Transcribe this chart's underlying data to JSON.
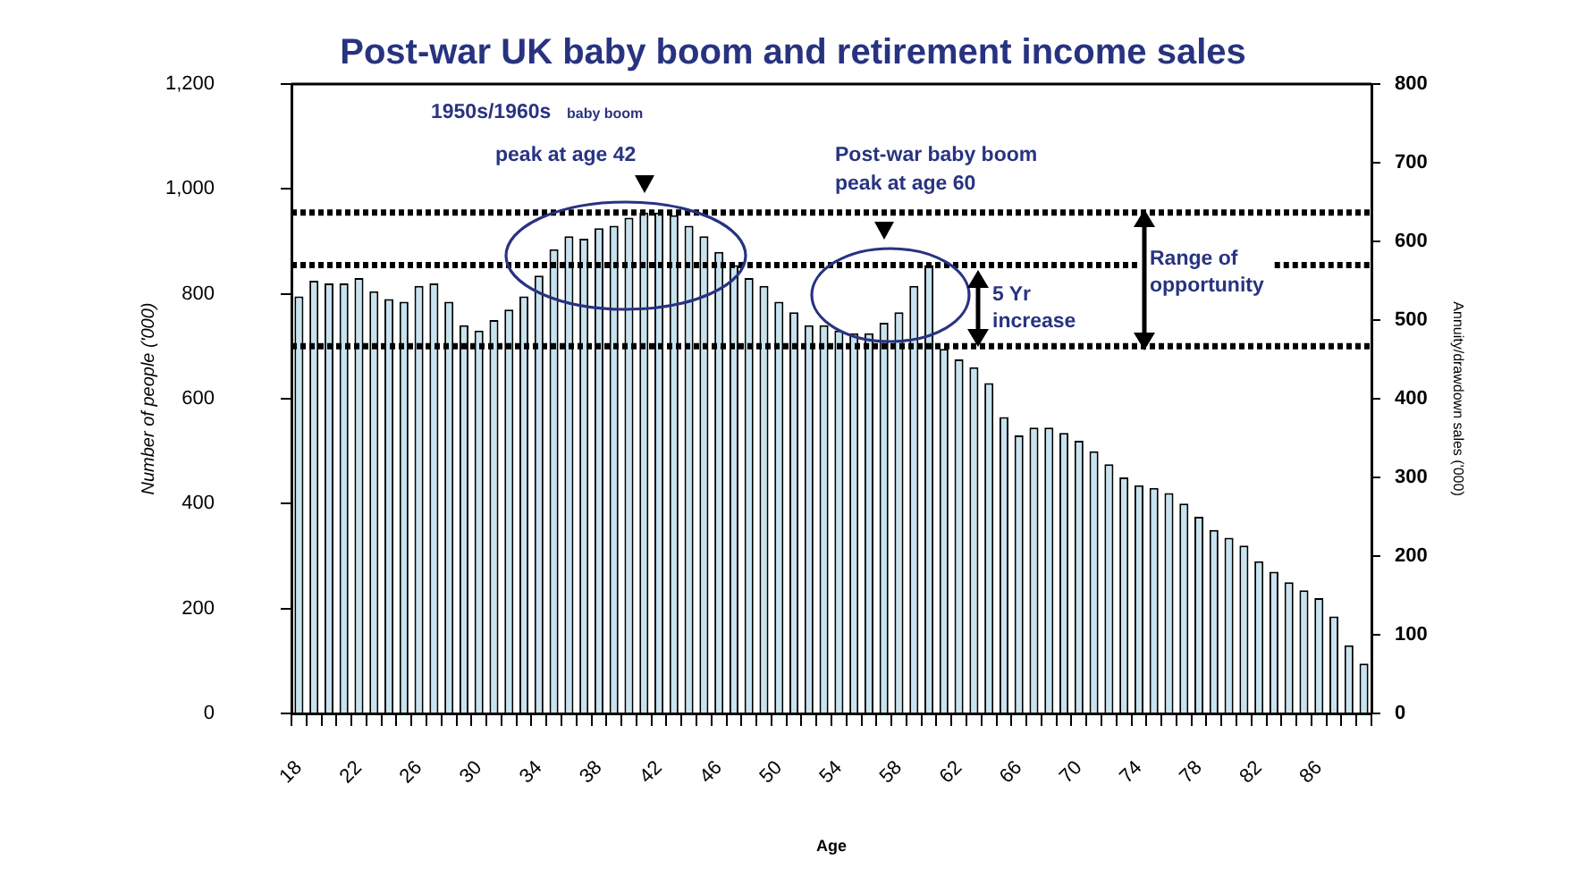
{
  "chart_data": {
    "type": "bar",
    "title": "Post-war UK baby boom and retirement income sales",
    "xlabel": "Age",
    "ylabel": "Number of people ('000)",
    "y2label": "Annuity/drawdown sales ('000)",
    "categories": [
      "18",
      null,
      null,
      null,
      "22",
      null,
      null,
      null,
      "26",
      null,
      null,
      null,
      "30",
      null,
      null,
      null,
      "34",
      null,
      null,
      null,
      "38",
      null,
      null,
      null,
      "42",
      null,
      null,
      null,
      "46",
      null,
      null,
      null,
      "50",
      null,
      null,
      null,
      "54",
      null,
      null,
      null,
      "58",
      null,
      null,
      null,
      "62",
      null,
      null,
      null,
      "66",
      null,
      null,
      null,
      "70",
      null,
      null,
      null,
      "74",
      null,
      null,
      null,
      "78",
      null,
      null,
      null,
      "82",
      null,
      null,
      null,
      "86",
      null,
      null,
      null
    ],
    "values": [
      795,
      825,
      820,
      820,
      830,
      805,
      790,
      785,
      815,
      820,
      785,
      740,
      730,
      750,
      770,
      795,
      835,
      885,
      910,
      905,
      925,
      930,
      945,
      955,
      955,
      950,
      930,
      910,
      880,
      855,
      830,
      815,
      785,
      765,
      740,
      740,
      730,
      725,
      725,
      745,
      765,
      815,
      855,
      695,
      675,
      660,
      630,
      565,
      530,
      545,
      545,
      535,
      520,
      500,
      475,
      450,
      435,
      430,
      420,
      400,
      375,
      350,
      335,
      320,
      290,
      270,
      250,
      235,
      220,
      185,
      130,
      95
    ],
    "color": "#c7e3ef",
    "ylim": [
      0,
      1200
    ],
    "yticks": [
      0,
      200,
      400,
      600,
      800,
      {
        "value": 1000,
        "label": "1,000"
      },
      {
        "value": 1200,
        "label": "1,200"
      }
    ],
    "y2lim": [
      0,
      800
    ],
    "y2ticks": [
      0,
      100,
      200,
      300,
      400,
      500,
      600,
      700,
      800
    ],
    "ref_lines": [
      {
        "axis": "y",
        "value": 955,
        "color": "#000000",
        "line_style": "dotted"
      },
      {
        "axis": "y",
        "value": 855,
        "color": "#000000",
        "line_style": "dotted"
      },
      {
        "axis": "y",
        "value": 700,
        "color": "#000000",
        "line_style": "dotted"
      }
    ],
    "annotations": [
      "1950s/1960s",
      "baby boom",
      "peak at age 42",
      "Post-war baby boom peak at age 60",
      "5 Yr increase",
      "Range of opportunity"
    ]
  }
}
